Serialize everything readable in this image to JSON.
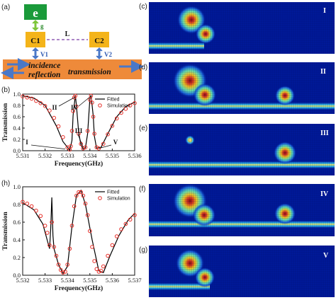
{
  "panels": {
    "a": "(a)",
    "b": "(b)",
    "h": "(h)",
    "c": "(c)",
    "d": "(d)",
    "e": "(e)",
    "f": "(f)",
    "g": "(g)"
  },
  "schematic": {
    "emitter": "e",
    "coupling_g": "g",
    "cavity1": "C1",
    "cavity2": "C2",
    "link": "L",
    "v1": "V1",
    "v2": "V2",
    "incidence": "incidence",
    "reflection": "reflection",
    "transmission": "transmission"
  },
  "field_labels": {
    "c": "I",
    "d": "II",
    "e": "III",
    "f": "IV",
    "g": "V"
  },
  "chart_data": [
    {
      "type": "line",
      "panel": "(b)",
      "xlabel": "Frequency(GHz)",
      "ylabel": "Transmission",
      "xlim": [
        5.531,
        5.536
      ],
      "ylim": [
        0.0,
        1.0
      ],
      "xticks": [
        "5.531",
        "5.532",
        "5.533",
        "5.534",
        "5.535",
        "5.536"
      ],
      "yticks": [
        "0.0",
        "0.2",
        "0.4",
        "0.6",
        "0.8",
        "1.0"
      ],
      "legend": [
        "Fitted",
        "Simulation"
      ],
      "legend_position": "top-right",
      "annotations": [
        "I",
        "II",
        "III",
        "IV",
        "V"
      ],
      "series": [
        {
          "name": "Fitted",
          "style": "line",
          "color": "#000000",
          "x": [
            5.531,
            5.5315,
            5.532,
            5.5325,
            5.5328,
            5.5331,
            5.5332,
            5.53325,
            5.53335,
            5.5334,
            5.5335,
            5.5336,
            5.5337,
            5.5338,
            5.5339,
            5.534,
            5.53405,
            5.53415,
            5.5342,
            5.5343,
            5.5345,
            5.5348,
            5.5352,
            5.5356,
            5.536
          ],
          "y": [
            0.97,
            0.93,
            0.8,
            0.44,
            0.16,
            0.01,
            0.18,
            0.62,
            0.98,
            0.8,
            0.32,
            0.1,
            0.03,
            0.05,
            0.3,
            0.92,
            0.98,
            0.62,
            0.26,
            0.04,
            0.06,
            0.3,
            0.6,
            0.78,
            0.86
          ]
        },
        {
          "name": "Simulation",
          "style": "markers",
          "color": "#e8302a",
          "x": [
            5.531,
            5.5312,
            5.5314,
            5.5316,
            5.5318,
            5.532,
            5.5322,
            5.5324,
            5.5326,
            5.5328,
            5.533,
            5.5331,
            5.53315,
            5.5332,
            5.53325,
            5.5333,
            5.53335,
            5.5334,
            5.5335,
            5.5336,
            5.5337,
            5.5338,
            5.5339,
            5.534,
            5.53405,
            5.5341,
            5.53415,
            5.5342,
            5.5343,
            5.5344,
            5.5346,
            5.5348,
            5.535,
            5.5352,
            5.5354,
            5.5356,
            5.5358,
            5.536
          ],
          "y": [
            0.96,
            0.94,
            0.92,
            0.88,
            0.84,
            0.79,
            0.71,
            0.58,
            0.43,
            0.24,
            0.06,
            0.02,
            0.08,
            0.35,
            0.7,
            0.94,
            0.97,
            0.78,
            0.3,
            0.12,
            0.04,
            0.06,
            0.35,
            0.9,
            0.97,
            0.85,
            0.6,
            0.3,
            0.06,
            0.04,
            0.12,
            0.29,
            0.44,
            0.57,
            0.67,
            0.74,
            0.8,
            0.84
          ]
        }
      ]
    },
    {
      "type": "line",
      "panel": "(h)",
      "xlabel": "Frequency(GHz)",
      "ylabel": "Transmission",
      "xlim": [
        5.532,
        5.537
      ],
      "ylim": [
        0.0,
        1.0
      ],
      "xticks": [
        "5.532",
        "5.533",
        "5.534",
        "5.535",
        "5.536",
        "5.537"
      ],
      "yticks": [
        "0.0",
        "0.2",
        "0.4",
        "0.6",
        "0.8",
        "1.0"
      ],
      "legend": [
        "Fitted",
        "Simulation"
      ],
      "legend_position": "top-right",
      "series": [
        {
          "name": "Fitted",
          "style": "line",
          "color": "#000000",
          "x": [
            5.532,
            5.5325,
            5.5329,
            5.5332,
            5.53325,
            5.5333,
            5.53335,
            5.5334,
            5.5336,
            5.5338,
            5.534,
            5.5342,
            5.5344,
            5.5346,
            5.5348,
            5.5351,
            5.5354,
            5.5356,
            5.5359,
            5.5363,
            5.5367,
            5.537
          ],
          "y": [
            0.82,
            0.74,
            0.58,
            0.3,
            0.52,
            0.88,
            0.45,
            0.3,
            0.12,
            0.02,
            0.1,
            0.55,
            0.9,
            0.96,
            0.8,
            0.4,
            0.05,
            0.03,
            0.22,
            0.45,
            0.62,
            0.7
          ]
        },
        {
          "name": "Simulation",
          "style": "markers",
          "color": "#e8302a",
          "x": [
            5.532,
            5.5322,
            5.5324,
            5.5326,
            5.5328,
            5.533,
            5.5331,
            5.5332,
            5.5333,
            5.5334,
            5.5335,
            5.5336,
            5.5337,
            5.5338,
            5.5339,
            5.534,
            5.5341,
            5.5342,
            5.5343,
            5.5344,
            5.5345,
            5.5346,
            5.5347,
            5.5348,
            5.5349,
            5.535,
            5.5351,
            5.5352,
            5.5353,
            5.5354,
            5.5355,
            5.5356,
            5.5358,
            5.536,
            5.5362,
            5.5364,
            5.5366,
            5.5368,
            5.537
          ],
          "y": [
            0.83,
            0.81,
            0.78,
            0.73,
            0.67,
            0.56,
            0.48,
            0.34,
            0.6,
            0.32,
            0.22,
            0.12,
            0.06,
            0.03,
            0.04,
            0.12,
            0.3,
            0.56,
            0.78,
            0.9,
            0.94,
            0.94,
            0.9,
            0.81,
            0.68,
            0.5,
            0.32,
            0.16,
            0.07,
            0.04,
            0.05,
            0.1,
            0.22,
            0.34,
            0.44,
            0.52,
            0.58,
            0.63,
            0.68
          ]
        }
      ]
    }
  ]
}
